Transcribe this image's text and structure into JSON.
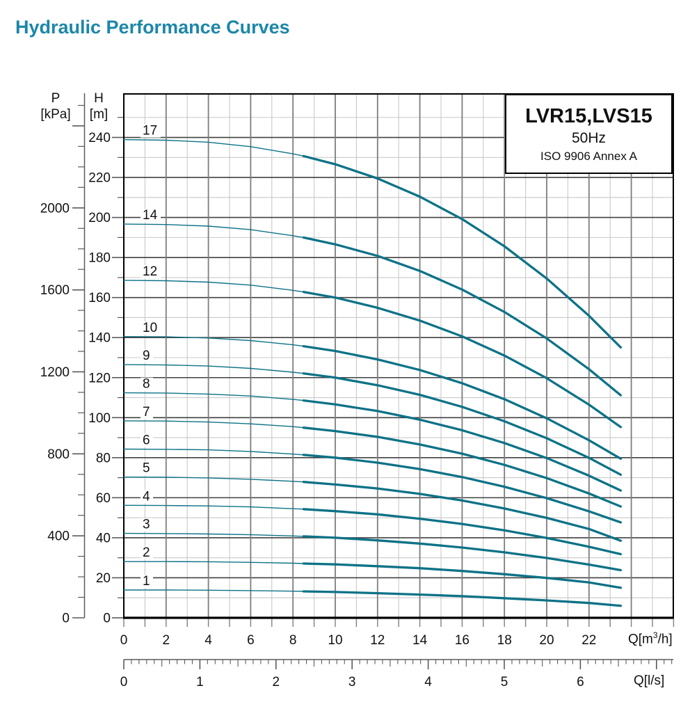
{
  "title": "Hydraulic Performance Curves",
  "legend": {
    "model": "LVR15,LVS15",
    "frequency": "50Hz",
    "standard": "ISO 9906 Annex A"
  },
  "axes": {
    "pressure": {
      "name": "P",
      "unit": "[kPa]",
      "labeled_ticks": [
        0,
        400,
        800,
        1200,
        1600,
        2000
      ],
      "minor_step": 100,
      "major_step": 400,
      "max_tick": 2500
    },
    "head": {
      "name": "H",
      "unit": "[m]",
      "labeled_ticks": [
        0,
        20,
        40,
        60,
        80,
        100,
        120,
        140,
        160,
        180,
        200,
        220,
        240
      ],
      "minor_step": 10,
      "major_step": 20,
      "max_tick": 250
    },
    "flow_m3h": {
      "label_prefix": "Q[m",
      "label_sup": "3",
      "label_suffix": "/h]",
      "labeled_ticks": [
        0,
        2,
        4,
        6,
        8,
        10,
        12,
        14,
        16,
        18,
        20,
        22
      ],
      "minor_step": 1,
      "max_tick": 26
    },
    "flow_ls": {
      "label": "Q[l/s]",
      "labeled_ticks": [
        0,
        1,
        2,
        3,
        4,
        5,
        6
      ],
      "minor_step": 0.1,
      "medium_step": 0.5,
      "max_tick": 7.2
    }
  },
  "chart_data": {
    "type": "line",
    "title": "LVR15,LVS15 50Hz ISO 9906 Annex A",
    "xlabel": "Q[m3/h]",
    "x2label": "Q[l/s]",
    "ylabel": "H [m]",
    "y2label": "P [kPa]",
    "xlim": [
      0,
      26
    ],
    "ylim": [
      0,
      261
    ],
    "grid": "on",
    "legend_position": "top-right",
    "bold_from_x": 8.5,
    "curve_label_q": 1.15,
    "x": [
      0,
      2,
      4,
      6,
      8,
      8.5,
      10,
      12,
      14,
      16,
      18,
      20,
      22,
      23.5
    ],
    "series": [
      {
        "name": "17",
        "values": [
          238.9,
          238.6,
          237.6,
          235.4,
          231.8,
          230.7,
          226.6,
          219.5,
          210.4,
          199.2,
          185.6,
          169.5,
          150.9,
          135.1
        ]
      },
      {
        "name": "14",
        "values": [
          196.7,
          196.5,
          195.7,
          193.9,
          190.9,
          190.0,
          186.6,
          180.8,
          173.3,
          164.0,
          152.8,
          139.6,
          124.2,
          111.2
        ]
      },
      {
        "name": "12",
        "values": [
          168.6,
          168.4,
          167.7,
          166.2,
          163.6,
          162.8,
          160.0,
          154.9,
          148.5,
          140.6,
          131.0,
          119.7,
          106.5,
          95.3
        ]
      },
      {
        "name": "10",
        "values": [
          140.5,
          140.4,
          139.8,
          138.5,
          136.4,
          135.7,
          133.3,
          129.1,
          123.8,
          117.2,
          109.2,
          99.7,
          88.7,
          79.5
        ]
      },
      {
        "name": "9",
        "values": [
          126.5,
          126.3,
          125.8,
          124.6,
          122.7,
          122.1,
          120.0,
          116.2,
          111.4,
          105.4,
          98.2,
          89.7,
          79.9,
          71.5
        ]
      },
      {
        "name": "8",
        "values": [
          112.4,
          112.3,
          111.8,
          110.8,
          109.1,
          108.6,
          106.6,
          103.3,
          99.0,
          93.7,
          87.3,
          79.8,
          71.0,
          63.6
        ]
      },
      {
        "name": "7",
        "values": [
          98.4,
          98.3,
          97.8,
          96.9,
          95.5,
          95.0,
          93.3,
          90.4,
          86.6,
          82.0,
          76.4,
          69.8,
          62.1,
          55.6
        ]
      },
      {
        "name": "6",
        "values": [
          84.3,
          84.2,
          83.9,
          83.1,
          81.8,
          81.4,
          80.0,
          77.5,
          74.3,
          70.3,
          65.5,
          59.8,
          53.2,
          47.7
        ]
      },
      {
        "name": "5",
        "values": [
          70.3,
          70.2,
          69.9,
          69.2,
          68.2,
          67.9,
          66.6,
          64.6,
          61.9,
          58.6,
          54.6,
          49.9,
          44.4,
          38.5
        ]
      },
      {
        "name": "4",
        "values": [
          56.2,
          56.1,
          55.9,
          55.4,
          54.5,
          54.3,
          53.3,
          51.7,
          49.5,
          46.9,
          43.7,
          39.9,
          35.5,
          31.8
        ]
      },
      {
        "name": "3",
        "values": [
          42.2,
          42.1,
          41.9,
          41.5,
          40.9,
          40.7,
          40.0,
          38.7,
          37.1,
          35.1,
          32.7,
          29.9,
          26.6,
          23.8
        ]
      },
      {
        "name": "2",
        "values": [
          28.1,
          28.1,
          28.0,
          27.7,
          27.3,
          27.1,
          26.7,
          25.8,
          24.8,
          23.4,
          21.8,
          19.9,
          17.7,
          15.0
        ]
      },
      {
        "name": "1",
        "values": [
          13.9,
          13.9,
          13.8,
          13.6,
          13.3,
          13.2,
          12.9,
          12.3,
          11.6,
          10.8,
          9.8,
          8.7,
          7.4,
          6.0
        ]
      }
    ]
  },
  "colors": {
    "title_text": "#1c87a8",
    "curve": "#0d7287",
    "grid_minor": "#c9c9c9",
    "grid_major_h": "#404040",
    "grid_major_v": "#7d7d7d",
    "frame": "#000000",
    "tick": "#5a5a5a",
    "text": "#111111"
  }
}
